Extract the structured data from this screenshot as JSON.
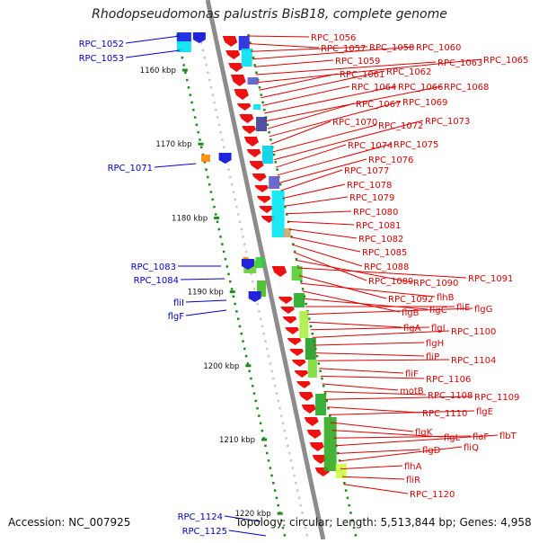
{
  "title": "Rhodopseudomonas palustris BisB18, complete genome",
  "footer": {
    "accession": "Accession: NC_007925",
    "topology": "Topology: circular; Length: 5,513,844 bp; Genes: 4,958"
  },
  "colors": {
    "backbone": "#8c8c8c",
    "gene_red": "#ee1111",
    "gene_blue": "#2222dd",
    "tick": "#1e8a1e",
    "label_red": "#dd0000",
    "label_blue": "#0000cc"
  },
  "kbp_ticks": [
    {
      "label": "1160 kbp",
      "kbp": 1160
    },
    {
      "label": "1170 kbp",
      "kbp": 1170
    },
    {
      "label": "1180 kbp",
      "kbp": 1180
    },
    {
      "label": "1190 kbp",
      "kbp": 1190
    },
    {
      "label": "1200 kbp",
      "kbp": 1200
    },
    {
      "label": "1210 kbp",
      "kbp": 1210
    },
    {
      "label": "1220 kbp",
      "kbp": 1220
    }
  ],
  "left_genes": [
    "RPC_1052",
    "RPC_1053",
    "RPC_1071",
    "RPC_1083",
    "RPC_1084",
    "fliI",
    "flgF",
    "RPC_1124",
    "RPC_1125"
  ],
  "right_genes": [
    "RPC_1056",
    "RPC_1057",
    "RPC_1058",
    "RPC_1060",
    "RPC_1059",
    "RPC_1063",
    "RPC_1065",
    "RPC_1061",
    "RPC_1062",
    "RPC_1064",
    "RPC_1066",
    "RPC_1068",
    "RPC_1067",
    "RPC_1069",
    "RPC_1070",
    "RPC_1072",
    "RPC_1073",
    "RPC_1074",
    "RPC_1075",
    "RPC_1076",
    "RPC_1077",
    "RPC_1078",
    "RPC_1079",
    "RPC_1080",
    "RPC_1081",
    "RPC_1082",
    "RPC_1085",
    "RPC_1088",
    "RPC_1089",
    "RPC_1090",
    "RPC_1091",
    "RPC_1092",
    "flhB",
    "flgB",
    "flgC",
    "fliE",
    "flgG",
    "flgA",
    "flgI",
    "RPC_1100",
    "flgH",
    "fliP",
    "RPC_1104",
    "fliF",
    "RPC_1106",
    "motB",
    "RPC_1108",
    "RPC_1109",
    "RPC_1110",
    "flgE",
    "flgK",
    "flgL",
    "flaF",
    "flbT",
    "flgD",
    "fliQ",
    "flhA",
    "fliR",
    "RPC_1120"
  ]
}
